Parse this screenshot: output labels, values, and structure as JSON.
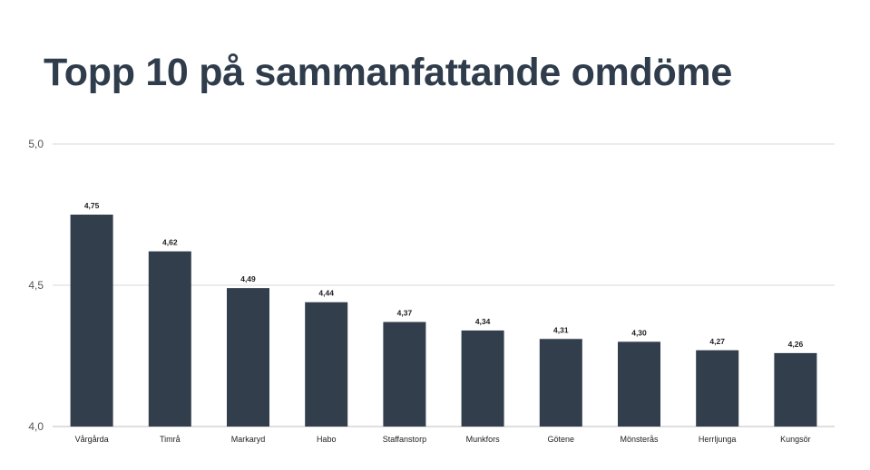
{
  "page": {
    "title": "Topp 10 på sammanfattande omdöme"
  },
  "chart_data": {
    "type": "bar",
    "title": "Topp 10 på sammanfattande omdöme",
    "xlabel": "",
    "ylabel": "",
    "categories": [
      "Vårgårda",
      "Timrå",
      "Markaryd",
      "Habo",
      "Staffanstorp",
      "Munkfors",
      "Götene",
      "Mönsterås",
      "Herrljunga",
      "Kungsör"
    ],
    "values": [
      4.75,
      4.62,
      4.49,
      4.44,
      4.37,
      4.34,
      4.31,
      4.3,
      4.27,
      4.26
    ],
    "value_labels": [
      "4,75",
      "4,62",
      "4,49",
      "4,44",
      "4,37",
      "4,34",
      "4,31",
      "4,30",
      "4,27",
      "4,26"
    ],
    "ylim": [
      4.0,
      5.0
    ],
    "yticks": [
      4.0,
      4.5,
      5.0
    ],
    "ytick_labels": [
      "4,0",
      "4,5",
      "5,0"
    ],
    "grid": true,
    "legend": "none",
    "colors": {
      "bar": "#323e4c",
      "grid": "#d9d9d9",
      "axis": "#bfbfbf",
      "tick_text": "#555555",
      "label_text": "#222222",
      "title": "#2f3c4b"
    }
  }
}
